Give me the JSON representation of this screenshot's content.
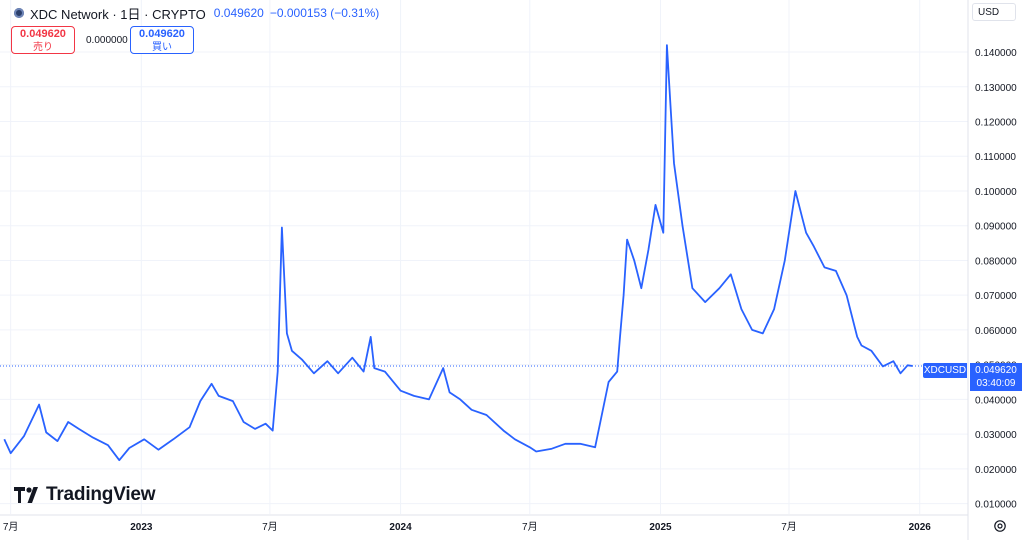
{
  "header": {
    "symbol_title": "XDC Network · 1日 · CRYPTO",
    "last_price": "0.049620",
    "change": "−0.000153 (−0.31%)"
  },
  "trade": {
    "sell_price": "0.049620",
    "sell_label": "売り",
    "spread": "0.000000",
    "buy_price": "0.049620",
    "buy_label": "買い"
  },
  "currency": "USD",
  "price_flag": {
    "symbol": "XDCUSD",
    "price": "0.049620",
    "countdown": "03:40:09"
  },
  "brand": "TradingView",
  "icons": {
    "settings": "gear-icon",
    "logo": "tradingview-logo-icon",
    "symbol": "xdc-coin-icon"
  },
  "colors": {
    "line": "#2962ff",
    "grid": "#f0f3fa",
    "text": "#131722",
    "down": "#f23645"
  },
  "chart_data": {
    "type": "line",
    "title": "XDC Network · 1日 · CRYPTO",
    "xlabel": "",
    "ylabel": "",
    "series": [
      {
        "x": [
          "2022-06-22",
          "2022-07-01",
          "2022-07-20",
          "2022-08-10",
          "2022-08-20",
          "2022-09-05",
          "2022-09-20",
          "2022-10-05",
          "2022-10-25",
          "2022-11-15",
          "2022-12-01",
          "2022-12-15",
          "2023-01-05",
          "2023-01-25",
          "2023-02-15",
          "2023-03-10",
          "2023-03-25",
          "2023-04-10",
          "2023-04-20",
          "2023-05-10",
          "2023-05-25",
          "2023-06-10",
          "2023-06-25",
          "2023-07-05",
          "2023-07-12",
          "2023-07-18",
          "2023-07-25",
          "2023-08-01",
          "2023-08-15",
          "2023-09-01",
          "2023-09-20",
          "2023-10-05",
          "2023-10-25",
          "2023-11-10",
          "2023-11-20",
          "2023-11-25",
          "2023-12-10",
          "2024-01-01",
          "2024-01-20",
          "2024-02-10",
          "2024-03-01",
          "2024-03-10",
          "2024-03-25",
          "2024-04-10",
          "2024-05-01",
          "2024-05-25",
          "2024-06-10",
          "2024-07-01",
          "2024-07-10",
          "2024-08-01",
          "2024-08-20",
          "2024-09-10",
          "2024-10-01",
          "2024-10-20",
          "2024-11-01",
          "2024-11-05",
          "2024-11-10",
          "2024-11-15",
          "2024-11-25",
          "2024-12-05",
          "2024-12-15",
          "2024-12-25",
          "2025-01-05",
          "2025-01-10",
          "2025-01-15",
          "2025-01-20",
          "2025-02-01",
          "2025-02-15",
          "2025-03-05",
          "2025-03-25",
          "2025-04-10",
          "2025-04-25",
          "2025-05-10",
          "2025-05-25",
          "2025-06-10",
          "2025-06-25",
          "2025-07-10",
          "2025-07-20",
          "2025-07-25",
          "2025-08-05",
          "2025-08-20",
          "2025-09-05",
          "2025-09-20",
          "2025-10-05",
          "2025-10-11",
          "2025-10-25",
          "2025-11-10",
          "2025-11-25",
          "2025-12-05",
          "2025-12-15",
          "2025-12-22"
        ],
        "y": [
          0.0285,
          0.0245,
          0.0295,
          0.0385,
          0.0305,
          0.028,
          0.0335,
          0.0315,
          0.029,
          0.0268,
          0.0225,
          0.026,
          0.0285,
          0.0255,
          0.0285,
          0.032,
          0.0395,
          0.0445,
          0.041,
          0.0395,
          0.0335,
          0.0315,
          0.033,
          0.031,
          0.048,
          0.0895,
          0.059,
          0.054,
          0.0515,
          0.0475,
          0.051,
          0.0475,
          0.052,
          0.048,
          0.058,
          0.049,
          0.048,
          0.0425,
          0.041,
          0.04,
          0.049,
          0.042,
          0.04,
          0.037,
          0.0355,
          0.031,
          0.0285,
          0.0262,
          0.025,
          0.0258,
          0.0272,
          0.0272,
          0.0262,
          0.045,
          0.048,
          0.058,
          0.07,
          0.086,
          0.08,
          0.072,
          0.083,
          0.096,
          0.088,
          0.142,
          0.125,
          0.108,
          0.09,
          0.072,
          0.068,
          0.072,
          0.076,
          0.066,
          0.06,
          0.059,
          0.066,
          0.08,
          0.1,
          0.092,
          0.088,
          0.084,
          0.078,
          0.077,
          0.07,
          0.058,
          0.0555,
          0.054,
          0.0495,
          0.051,
          0.0475,
          0.0498,
          0.0496
        ]
      }
    ],
    "x_ticks": [
      "7月",
      "2023",
      "7月",
      "2024",
      "7月",
      "2025",
      "7月",
      "2026"
    ],
    "y_ticks": [
      "0.010000",
      "0.020000",
      "0.030000",
      "0.040000",
      "0.050000",
      "0.060000",
      "0.070000",
      "0.080000",
      "0.090000",
      "0.100000",
      "0.110000",
      "0.120000",
      "0.130000",
      "0.140000"
    ],
    "ylim": [
      0.007,
      0.1475
    ],
    "grid": true,
    "last_value": 0.04962
  }
}
